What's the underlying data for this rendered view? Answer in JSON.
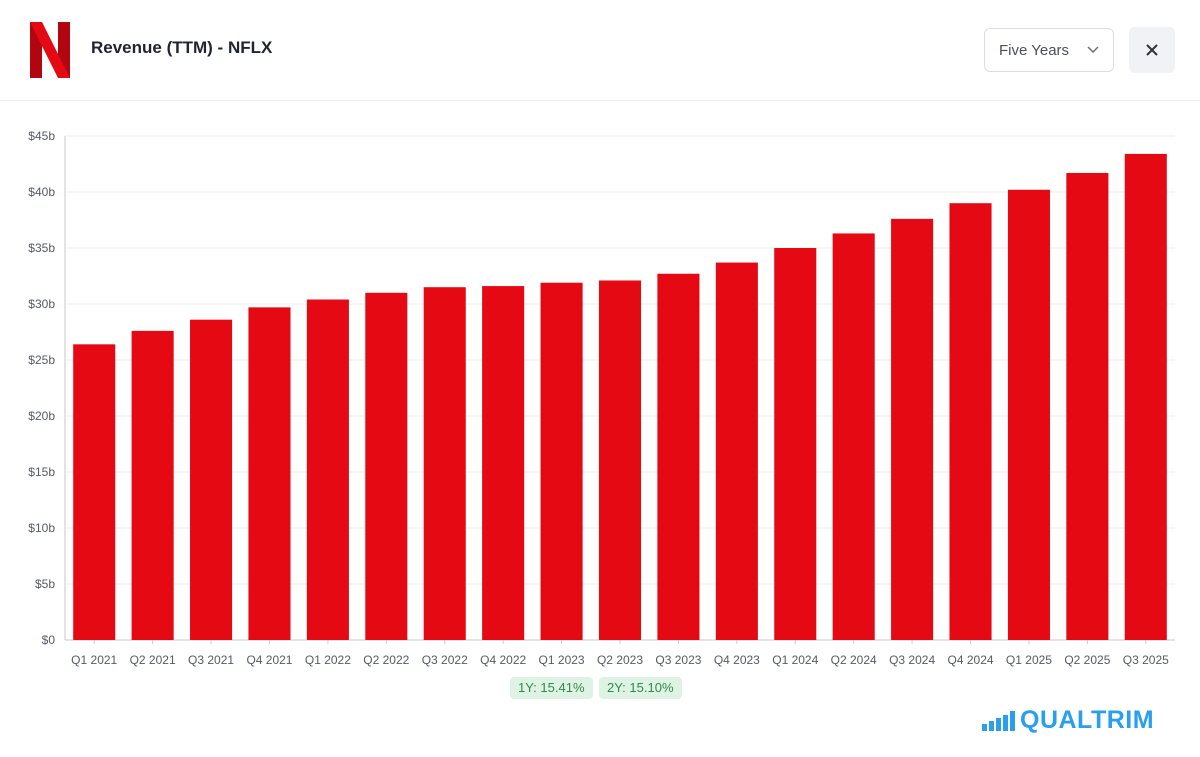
{
  "header": {
    "title": "Revenue (TTM) - NFLX",
    "logo_icon": "netflix-logo-icon",
    "range_select": {
      "value": "Five Years"
    },
    "close_icon": "close-icon"
  },
  "growth_badges": [
    {
      "label": "1Y: 15.41%"
    },
    {
      "label": "2Y: 15.10%"
    }
  ],
  "brand": {
    "name": "QUALTRIM"
  },
  "colors": {
    "bar": "#e50914",
    "badge_bg": "#dff3e4",
    "badge_text": "#2f8a4a",
    "brand": "#2a9ff0"
  },
  "chart_data": {
    "type": "bar",
    "categories": [
      "Q1 2021",
      "Q2 2021",
      "Q3 2021",
      "Q4 2021",
      "Q1 2022",
      "Q2 2022",
      "Q3 2022",
      "Q4 2022",
      "Q1 2023",
      "Q2 2023",
      "Q3 2023",
      "Q4 2023",
      "Q1 2024",
      "Q2 2024",
      "Q3 2024",
      "Q4 2024",
      "Q1 2025",
      "Q2 2025",
      "Q3 2025"
    ],
    "values": [
      26.4,
      27.6,
      28.6,
      29.7,
      30.4,
      31.0,
      31.5,
      31.6,
      31.9,
      32.1,
      32.7,
      33.7,
      35.0,
      36.3,
      37.6,
      39.0,
      40.2,
      41.7,
      43.4
    ],
    "value_unit": "billions USD",
    "ylim": [
      0,
      45
    ],
    "yticks": [
      0,
      5,
      10,
      15,
      20,
      25,
      30,
      35,
      40,
      45
    ],
    "ytick_labels": [
      "$0",
      "$5b",
      "$10b",
      "$15b",
      "$20b",
      "$25b",
      "$30b",
      "$35b",
      "$40b",
      "$45b"
    ],
    "grid": true,
    "legend": "none"
  }
}
